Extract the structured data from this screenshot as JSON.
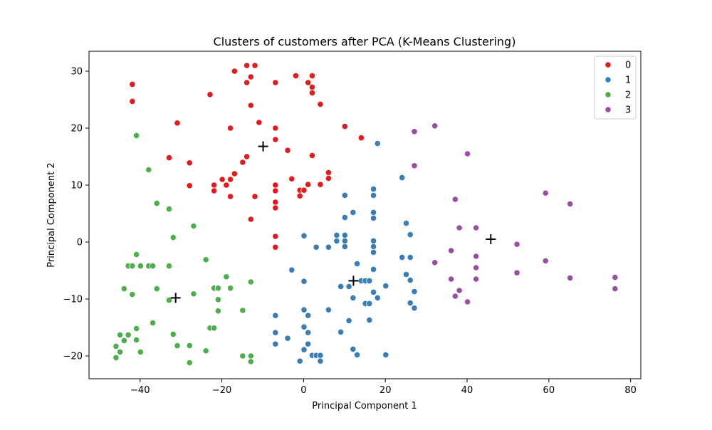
{
  "chart_data": {
    "type": "scatter",
    "title": "Clusters of customers after PCA (K-Means Clustering)",
    "xlabel": "Principal Component 1",
    "ylabel": "Principal Component 2",
    "xlim": [
      -52.5,
      82.5
    ],
    "ylim": [
      -24.0,
      33.5
    ],
    "xticks": [
      -40,
      -20,
      0,
      20,
      40,
      60,
      80
    ],
    "yticks": [
      -20,
      -10,
      0,
      10,
      20,
      30
    ],
    "xtick_labels": [
      "−40",
      "−20",
      "0",
      "20",
      "40",
      "60",
      "80"
    ],
    "ytick_labels": [
      "−20",
      "−10",
      "0",
      "10",
      "20",
      "30"
    ],
    "grid": false,
    "legend_position": "top-right",
    "series": [
      {
        "name": "0",
        "color": "#e41a1c",
        "points": [
          [
            -13.9,
            31.0
          ],
          [
            -11.9,
            31.0
          ],
          [
            -16.9,
            30.0
          ],
          [
            -12.9,
            29.0
          ],
          [
            -1.9,
            29.2
          ],
          [
            2.1,
            29.2
          ],
          [
            -41.9,
            27.7
          ],
          [
            -13.9,
            28.0
          ],
          [
            -6.9,
            28.0
          ],
          [
            1.1,
            28.0
          ],
          [
            2.1,
            27.2
          ],
          [
            2.1,
            26.2
          ],
          [
            -22.9,
            25.9
          ],
          [
            -41.9,
            24.7
          ],
          [
            -12.9,
            24.0
          ],
          [
            4.1,
            24.2
          ],
          [
            -10.9,
            21.0
          ],
          [
            -30.9,
            20.9
          ],
          [
            -17.9,
            20.0
          ],
          [
            -6.9,
            20.0
          ],
          [
            10.1,
            20.3
          ],
          [
            14.1,
            18.3
          ],
          [
            -6.9,
            18.0
          ],
          [
            -3.9,
            16.1
          ],
          [
            -32.9,
            14.8
          ],
          [
            -13.9,
            15.0
          ],
          [
            2.1,
            15.2
          ],
          [
            -27.9,
            13.9
          ],
          [
            -14.9,
            14.0
          ],
          [
            -16.9,
            12.0
          ],
          [
            6.1,
            12.2
          ],
          [
            -19.9,
            11.0
          ],
          [
            -17.9,
            11.0
          ],
          [
            -2.9,
            11.1
          ],
          [
            6.1,
            11.2
          ],
          [
            -21.9,
            10.0
          ],
          [
            -18.9,
            10.0
          ],
          [
            -6.9,
            10.0
          ],
          [
            1.1,
            10.1
          ],
          [
            4.1,
            10.1
          ],
          [
            -27.9,
            9.9
          ],
          [
            -21.9,
            9.0
          ],
          [
            -6.9,
            9.0
          ],
          [
            -0.9,
            9.1
          ],
          [
            0.1,
            9.1
          ],
          [
            -17.9,
            8.0
          ],
          [
            -11.9,
            8.0
          ],
          [
            -0.9,
            8.1
          ],
          [
            -6.9,
            7.0
          ],
          [
            -6.9,
            6.0
          ],
          [
            -12.9,
            4.0
          ],
          [
            -6.9,
            1.0
          ],
          [
            -6.9,
            -0.9
          ]
        ]
      },
      {
        "name": "1",
        "color": "#377eb8",
        "points": [
          [
            18.1,
            17.3
          ],
          [
            24.1,
            11.3
          ],
          [
            17.1,
            9.3
          ],
          [
            10.1,
            8.2
          ],
          [
            17.1,
            8.2
          ],
          [
            12.1,
            5.2
          ],
          [
            17.1,
            5.2
          ],
          [
            10.1,
            4.3
          ],
          [
            17.1,
            4.2
          ],
          [
            25.1,
            3.3
          ],
          [
            0.1,
            1.1
          ],
          [
            8.1,
            1.2
          ],
          [
            10.1,
            1.2
          ],
          [
            26.1,
            1.3
          ],
          [
            8.1,
            0.2
          ],
          [
            10.1,
            0.2
          ],
          [
            17.1,
            0.2
          ],
          [
            3.1,
            -0.9
          ],
          [
            6.1,
            -0.9
          ],
          [
            10.1,
            -0.8
          ],
          [
            17.1,
            -0.8
          ],
          [
            17.1,
            -1.8
          ],
          [
            24.1,
            -2.7
          ],
          [
            26.1,
            -2.7
          ],
          [
            13.1,
            -3.8
          ],
          [
            17.1,
            -4.8
          ],
          [
            -2.9,
            -4.9
          ],
          [
            25.1,
            -5.7
          ],
          [
            0.1,
            -6.9
          ],
          [
            14.1,
            -6.8
          ],
          [
            15.1,
            -6.8
          ],
          [
            16.1,
            -6.8
          ],
          [
            26.1,
            -6.7
          ],
          [
            9.1,
            -7.8
          ],
          [
            11.1,
            -7.8
          ],
          [
            20.1,
            -7.7
          ],
          [
            17.1,
            -8.8
          ],
          [
            27.1,
            -8.7
          ],
          [
            12.1,
            -9.8
          ],
          [
            18.1,
            -9.8
          ],
          [
            15.1,
            -10.8
          ],
          [
            16.1,
            -10.8
          ],
          [
            26.1,
            -10.7
          ],
          [
            27.1,
            -11.6
          ],
          [
            6.1,
            -11.9
          ],
          [
            0.1,
            -11.9
          ],
          [
            -6.9,
            -12.9
          ],
          [
            1.1,
            -12.9
          ],
          [
            11.1,
            -13.8
          ],
          [
            16.1,
            -13.7
          ],
          [
            0.1,
            -14.9
          ],
          [
            9.1,
            -15.8
          ],
          [
            -6.9,
            -15.9
          ],
          [
            1.1,
            -15.9
          ],
          [
            -3.9,
            -16.9
          ],
          [
            -6.9,
            -17.9
          ],
          [
            1.1,
            -17.9
          ],
          [
            12.1,
            -18.8
          ],
          [
            0.1,
            -18.9
          ],
          [
            2.1,
            -19.9
          ],
          [
            3.1,
            -19.9
          ],
          [
            4.1,
            -19.9
          ],
          [
            13.1,
            -19.8
          ],
          [
            20.1,
            -19.8
          ],
          [
            -0.9,
            -20.9
          ],
          [
            4.1,
            -20.9
          ]
        ]
      },
      {
        "name": "2",
        "color": "#4daf4a",
        "points": [
          [
            -40.9,
            18.7
          ],
          [
            -37.9,
            12.7
          ],
          [
            -35.9,
            6.8
          ],
          [
            -32.9,
            5.8
          ],
          [
            -26.9,
            2.8
          ],
          [
            -31.9,
            0.8
          ],
          [
            -40.9,
            -2.2
          ],
          [
            -23.9,
            -3.1
          ],
          [
            -42.9,
            -4.2
          ],
          [
            -41.9,
            -4.2
          ],
          [
            -39.9,
            -4.2
          ],
          [
            -37.9,
            -4.2
          ],
          [
            -36.9,
            -4.2
          ],
          [
            -32.9,
            -4.2
          ],
          [
            -18.9,
            -6.1
          ],
          [
            -43.9,
            -8.2
          ],
          [
            -35.9,
            -8.2
          ],
          [
            -21.9,
            -8.1
          ],
          [
            -20.9,
            -8.1
          ],
          [
            -17.9,
            -8.1
          ],
          [
            -12.9,
            -7.0
          ],
          [
            -41.9,
            -9.2
          ],
          [
            -26.9,
            -9.1
          ],
          [
            -32.9,
            -10.2
          ],
          [
            -20.9,
            -10.1
          ],
          [
            -14.9,
            -12.0
          ],
          [
            -20.9,
            -12.1
          ],
          [
            -36.9,
            -14.2
          ],
          [
            -40.9,
            -15.2
          ],
          [
            -22.9,
            -15.1
          ],
          [
            -21.9,
            -15.1
          ],
          [
            -44.9,
            -16.3
          ],
          [
            -42.9,
            -16.3
          ],
          [
            -31.9,
            -16.2
          ],
          [
            -43.9,
            -17.3
          ],
          [
            -40.9,
            -17.2
          ],
          [
            -45.9,
            -18.3
          ],
          [
            -30.9,
            -18.2
          ],
          [
            -27.9,
            -18.2
          ],
          [
            -44.9,
            -19.3
          ],
          [
            -39.9,
            -19.3
          ],
          [
            -23.9,
            -19.1
          ],
          [
            -45.9,
            -20.3
          ],
          [
            -14.9,
            -20.0
          ],
          [
            -12.9,
            -20.0
          ],
          [
            -27.9,
            -21.2
          ],
          [
            -12.9,
            -21.0
          ]
        ]
      },
      {
        "name": "3",
        "color": "#984ea3",
        "points": [
          [
            32.1,
            20.4
          ],
          [
            27.1,
            19.4
          ],
          [
            40.1,
            15.5
          ],
          [
            27.1,
            13.4
          ],
          [
            37.1,
            7.5
          ],
          [
            59.2,
            8.6
          ],
          [
            65.2,
            6.7
          ],
          [
            38.1,
            2.5
          ],
          [
            42.2,
            2.5
          ],
          [
            52.2,
            -0.4
          ],
          [
            36.1,
            -1.5
          ],
          [
            42.2,
            -2.5
          ],
          [
            32.1,
            -3.6
          ],
          [
            59.2,
            -3.3
          ],
          [
            42.2,
            -4.5
          ],
          [
            52.2,
            -5.4
          ],
          [
            36.1,
            -6.5
          ],
          [
            42.2,
            -6.5
          ],
          [
            65.2,
            -6.3
          ],
          [
            76.2,
            -6.2
          ],
          [
            38.1,
            -8.5
          ],
          [
            76.2,
            -8.2
          ],
          [
            37.1,
            -9.5
          ],
          [
            40.1,
            -10.5
          ]
        ]
      }
    ],
    "centroids": {
      "marker": "+",
      "color": "#000000",
      "points": [
        [
          -9.9,
          16.8
        ],
        [
          12.2,
          -6.8
        ],
        [
          -31.3,
          -9.8
        ],
        [
          45.8,
          0.5
        ]
      ]
    }
  }
}
